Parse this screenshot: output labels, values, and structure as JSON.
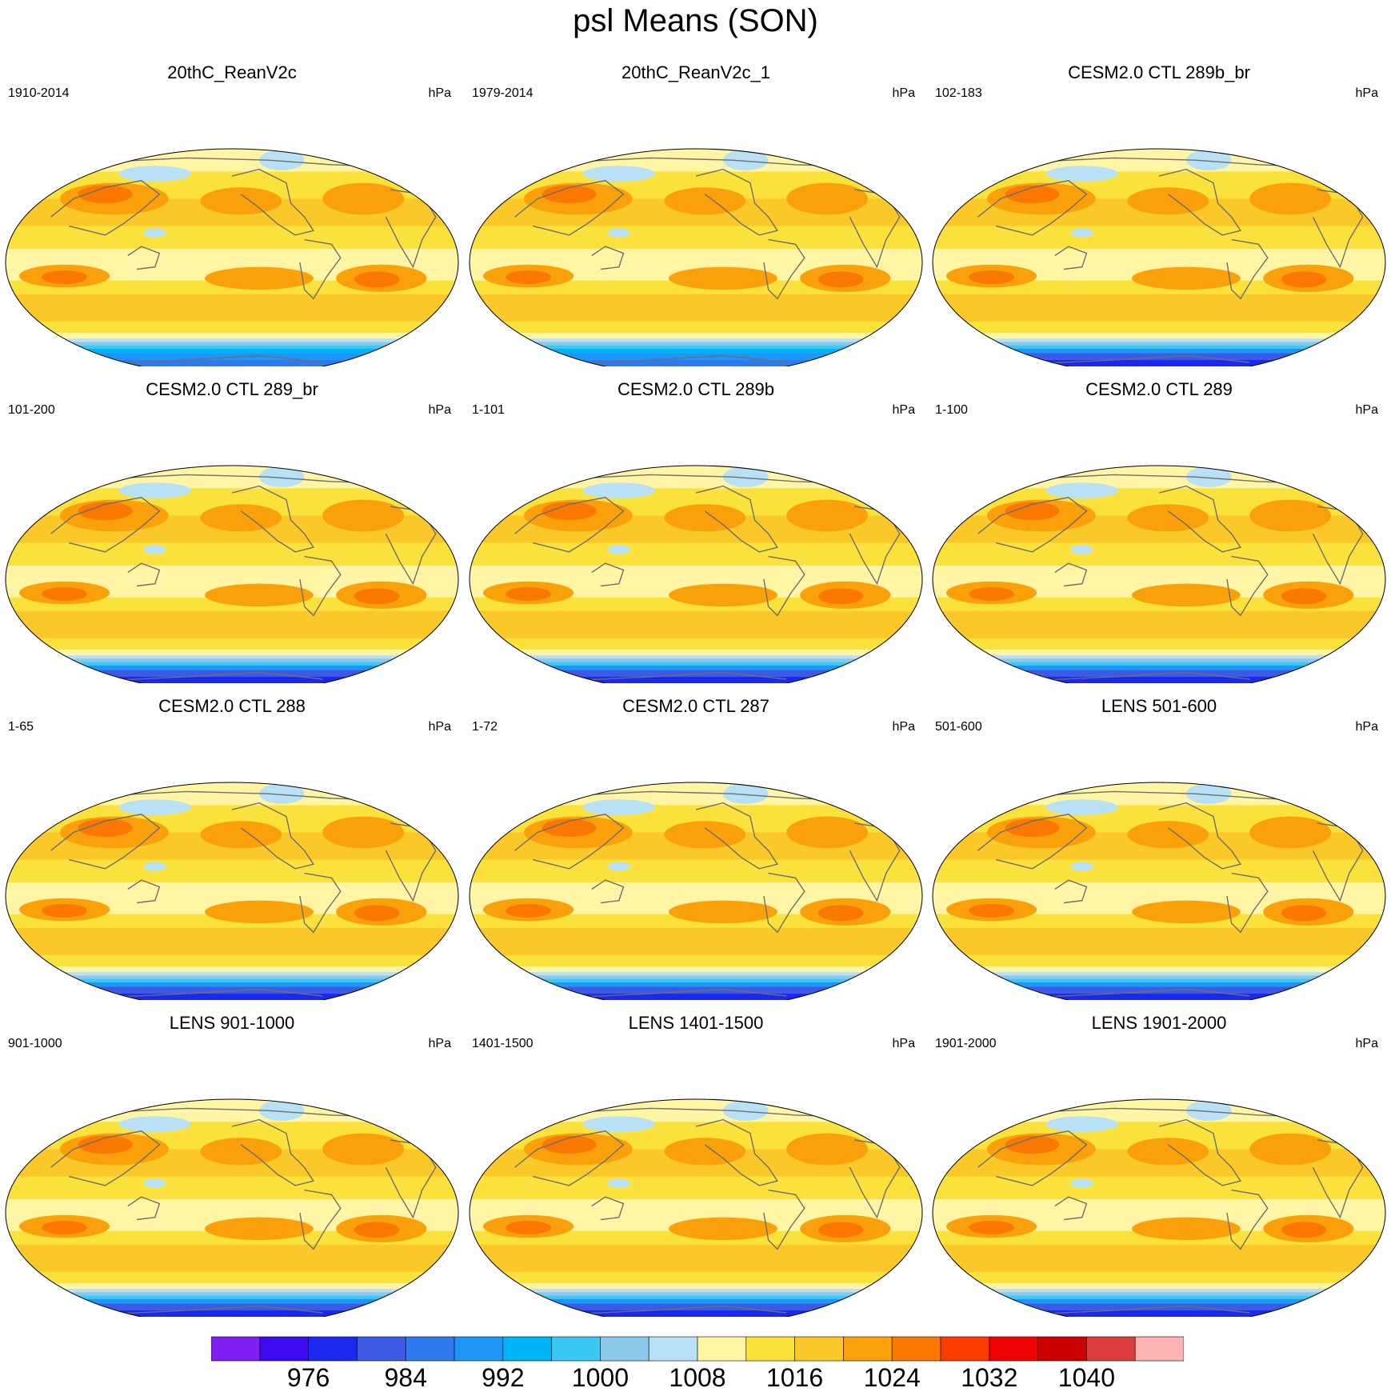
{
  "title": "psl Means (SON)",
  "units_label": "hPa",
  "colors": [
    "#7f1ff2",
    "#3b0af0",
    "#1a28f0",
    "#3c5ae6",
    "#2e78f0",
    "#1e96f5",
    "#00b4f5",
    "#3cc8f5",
    "#8cc8eb",
    "#b9e1f5",
    "#fff5a5",
    "#fae13c",
    "#fac828",
    "#faa00a",
    "#fa7800",
    "#fa3c00",
    "#f00000",
    "#cd0000",
    "#dc3c3c",
    "#ffb4b4"
  ],
  "panels": [
    {
      "title": "20thC_ReanV2c",
      "years": "1910-2014"
    },
    {
      "title": "20thC_ReanV2c_1",
      "years": "1979-2014"
    },
    {
      "title": "CESM2.0 CTL 289b_br",
      "years": "102-183"
    },
    {
      "title": "CESM2.0 CTL 289_br",
      "years": "101-200"
    },
    {
      "title": "CESM2.0 CTL 289b",
      "years": "1-101"
    },
    {
      "title": "CESM2.0 CTL 289",
      "years": "1-100"
    },
    {
      "title": "CESM2.0 CTL 288",
      "years": "1-65"
    },
    {
      "title": "CESM2.0 CTL 287",
      "years": "1-72"
    },
    {
      "title": "LENS 501-600",
      "years": "501-600"
    },
    {
      "title": "LENS 901-1000",
      "years": "901-1000"
    },
    {
      "title": "LENS 1401-1500",
      "years": "1401-1500"
    },
    {
      "title": "LENS 1901-2000",
      "years": "1901-2000"
    }
  ],
  "colorbar": {
    "labels": [
      {
        "text": "976",
        "boundary": 2
      },
      {
        "text": "984",
        "boundary": 4
      },
      {
        "text": "992",
        "boundary": 6
      },
      {
        "text": "1000",
        "boundary": 8
      },
      {
        "text": "1008",
        "boundary": 10
      },
      {
        "text": "1016",
        "boundary": 12
      },
      {
        "text": "1024",
        "boundary": 14
      },
      {
        "text": "1032",
        "boundary": 16
      },
      {
        "text": "1040",
        "boundary": 18
      }
    ]
  }
}
